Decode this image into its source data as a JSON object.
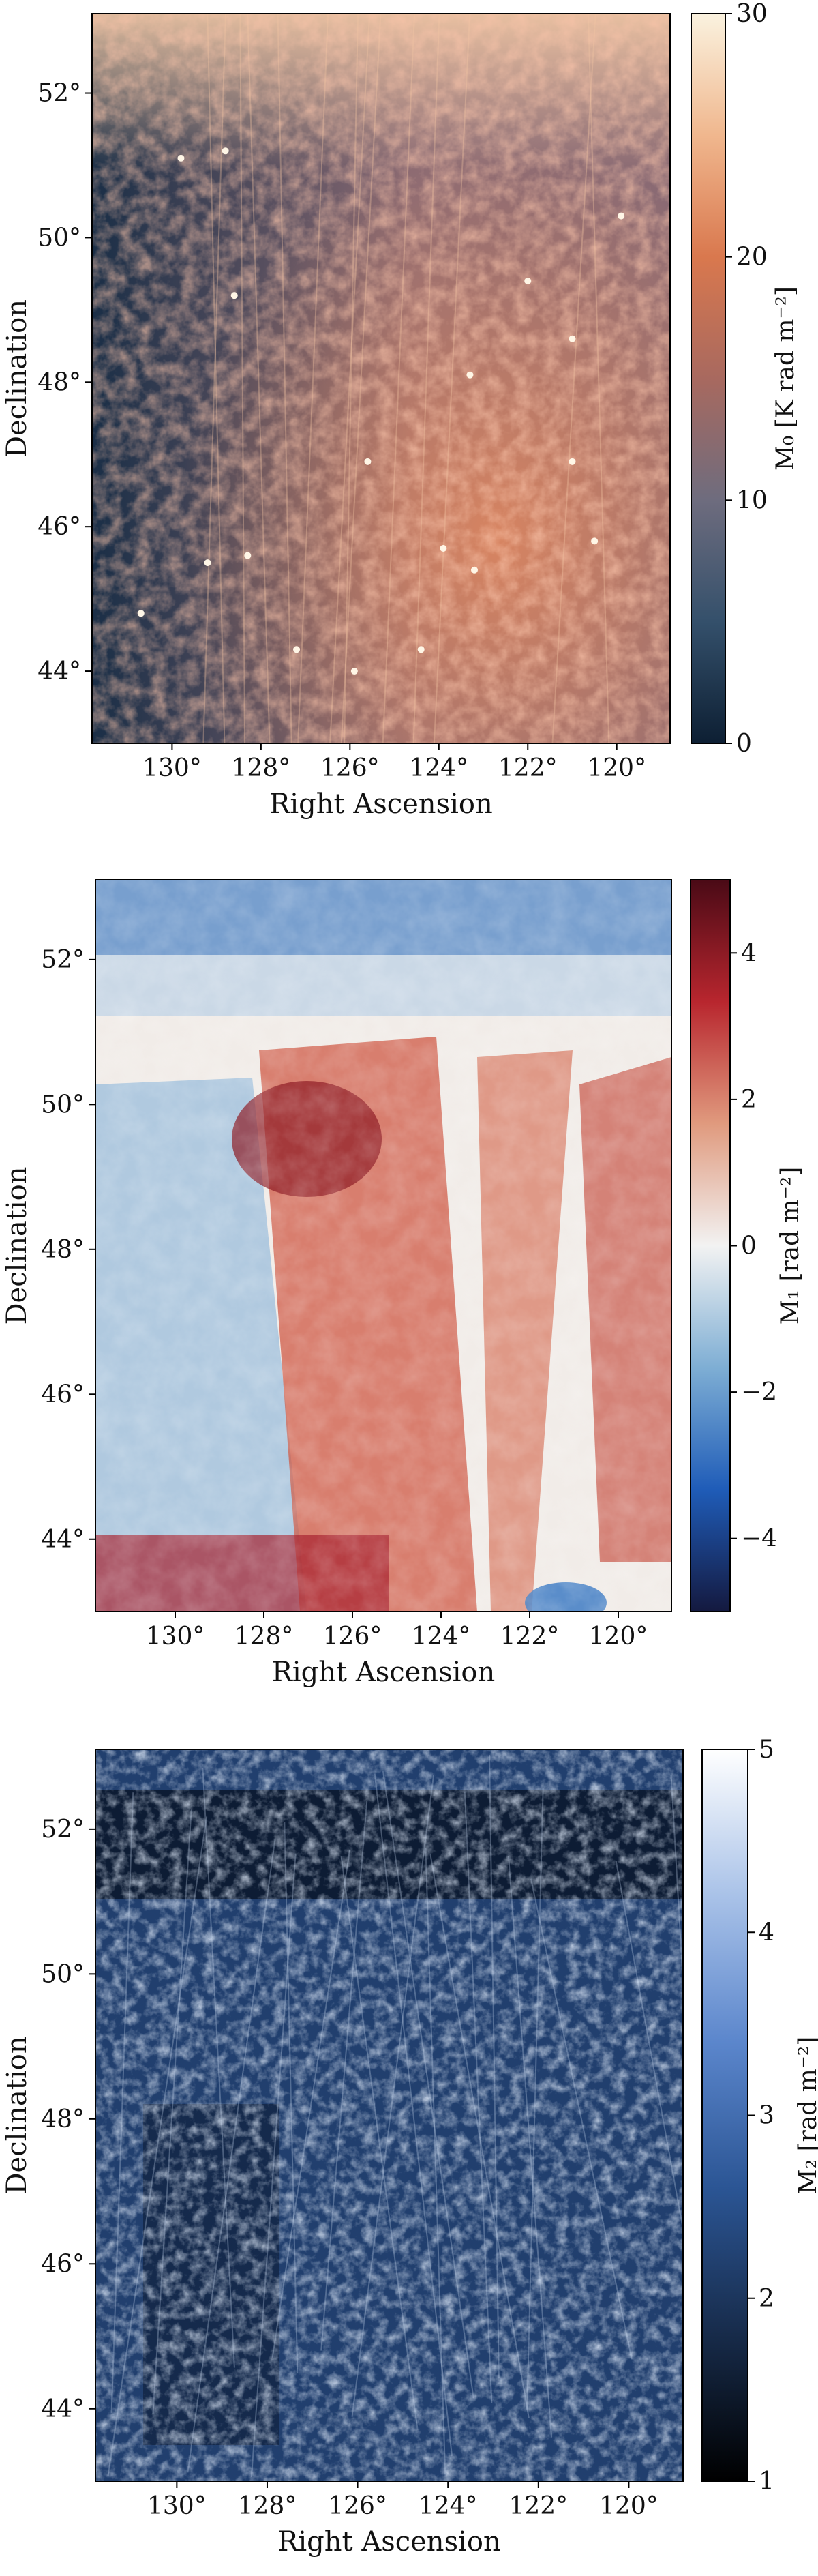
{
  "chart_data": [
    {
      "type": "heatmap",
      "quantity": "moment-0",
      "xlabel": "Right Ascension",
      "ylabel": "Declination",
      "xlim": [
        131.8,
        118.8
      ],
      "ylim": [
        43.0,
        53.1
      ],
      "xticks": [
        130,
        128,
        126,
        124,
        122,
        120
      ],
      "xtick_labels": [
        "130°",
        "128°",
        "126°",
        "124°",
        "122°",
        "120°"
      ],
      "yticks": [
        44,
        46,
        48,
        50,
        52
      ],
      "ytick_labels": [
        "44°",
        "46°",
        "48°",
        "50°",
        "52°"
      ],
      "colorbar": {
        "label": "M₀ [K rad m⁻²]",
        "range": [
          0,
          30
        ],
        "ticks": [
          0,
          10,
          20,
          30
        ],
        "tick_labels": [
          "0",
          "10",
          "20",
          "30"
        ],
        "colormap": [
          "#0d1f33",
          "#34506b",
          "#6e6c7e",
          "#a8695f",
          "#d9784e",
          "#f0b78e",
          "#faf2df"
        ]
      },
      "point_sources": [
        {
          "ra": 128.3,
          "dec": 45.6
        },
        {
          "ra": 129.2,
          "dec": 45.5
        },
        {
          "ra": 130.7,
          "dec": 44.8
        },
        {
          "ra": 127.2,
          "dec": 44.3
        },
        {
          "ra": 125.6,
          "dec": 46.9
        },
        {
          "ra": 123.9,
          "dec": 45.7
        },
        {
          "ra": 123.2,
          "dec": 45.4
        },
        {
          "ra": 124.4,
          "dec": 44.3
        },
        {
          "ra": 123.3,
          "dec": 48.1
        },
        {
          "ra": 121.0,
          "dec": 48.6
        },
        {
          "ra": 122.0,
          "dec": 49.4
        },
        {
          "ra": 128.6,
          "dec": 49.2
        },
        {
          "ra": 129.8,
          "dec": 51.1
        },
        {
          "ra": 128.8,
          "dec": 51.2
        },
        {
          "ra": 125.9,
          "dec": 44.0
        },
        {
          "ra": 119.9,
          "dec": 50.3
        },
        {
          "ra": 121.0,
          "dec": 46.9
        },
        {
          "ra": 120.5,
          "dec": 45.8
        }
      ]
    },
    {
      "type": "heatmap",
      "quantity": "moment-1",
      "xlabel": "Right Ascension",
      "ylabel": "Declination",
      "xlim": [
        131.8,
        118.8
      ],
      "ylim": [
        43.0,
        53.1
      ],
      "xticks": [
        130,
        128,
        126,
        124,
        122,
        120
      ],
      "xtick_labels": [
        "130°",
        "128°",
        "126°",
        "124°",
        "122°",
        "120°"
      ],
      "yticks": [
        44,
        46,
        48,
        50,
        52
      ],
      "ytick_labels": [
        "44°",
        "46°",
        "48°",
        "50°",
        "52°"
      ],
      "colorbar": {
        "label": "M₁ [rad m⁻²]",
        "range": [
          -5,
          5
        ],
        "ticks": [
          -4,
          -2,
          0,
          2,
          4
        ],
        "tick_labels": [
          "−4",
          "−2",
          "0",
          "2",
          "4"
        ],
        "colormap": [
          "#14193f",
          "#1f5cb8",
          "#7eaed4",
          "#f2f2f2",
          "#e09a7e",
          "#b8262e",
          "#4a0a16"
        ]
      }
    },
    {
      "type": "heatmap",
      "quantity": "moment-2",
      "xlabel": "Right Ascension",
      "ylabel": "Declination",
      "xlim": [
        131.8,
        118.8
      ],
      "ylim": [
        43.0,
        53.1
      ],
      "xticks": [
        130,
        128,
        126,
        124,
        122,
        120
      ],
      "xtick_labels": [
        "130°",
        "128°",
        "126°",
        "124°",
        "122°",
        "120°"
      ],
      "yticks": [
        44,
        46,
        48,
        50,
        52
      ],
      "ytick_labels": [
        "44°",
        "46°",
        "48°",
        "50°",
        "52°"
      ],
      "colorbar": {
        "label": "M₂ [rad m⁻²]",
        "range": [
          1,
          5
        ],
        "ticks": [
          1,
          2,
          3,
          4,
          5
        ],
        "tick_labels": [
          "1",
          "2",
          "3",
          "4",
          "5"
        ],
        "colormap": [
          "#000000",
          "#172b4a",
          "#2b5594",
          "#5b86cc",
          "#a9c2e8",
          "#ffffff"
        ]
      }
    }
  ]
}
